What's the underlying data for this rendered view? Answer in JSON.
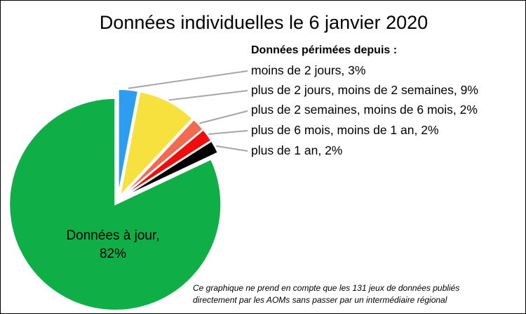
{
  "chart_data": {
    "type": "pie",
    "title": "Données individuelles le 6 janvier 2020",
    "legend_heading": "Données périmées depuis :",
    "slices": [
      {
        "label": "moins de 2 jours, 3%",
        "value": 3,
        "color": "#2e9cf0"
      },
      {
        "label": "plus de 2 jours, moins de 2 semaines, 9%",
        "value": 9,
        "color": "#f6e13e"
      },
      {
        "label": "plus de 2 semaines, moins de 6 mois, 2%",
        "value": 2,
        "color": "#f26a4f"
      },
      {
        "label": "plus de 6 mois, moins de 1 an, 2%",
        "value": 2,
        "color": "#f20d0d"
      },
      {
        "label": "plus de 1 an, 2%",
        "value": 2,
        "color": "#000000"
      },
      {
        "label_line1": "Données à jour,",
        "label_line2": "82%",
        "value": 82,
        "color": "#0fae47"
      }
    ],
    "footnote_line1": "Ce graphique ne prend en compte que les 131 jeux de données publiés",
    "footnote_line2": "directement par les AOMs sans passer par un intermédiaire régional"
  }
}
